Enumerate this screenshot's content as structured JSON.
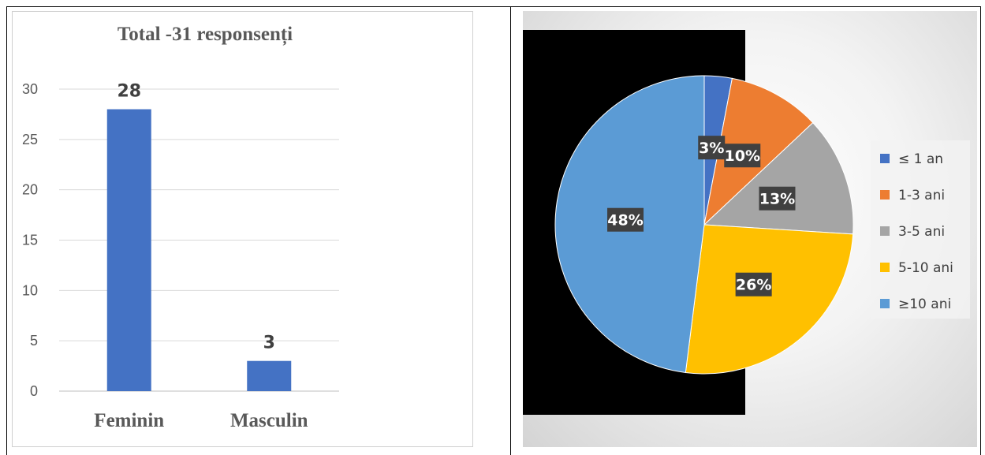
{
  "chart_data": [
    {
      "type": "bar",
      "title": "Total -31 responsenți",
      "categories": [
        "Feminin",
        "Masculin"
      ],
      "values": [
        28,
        3
      ],
      "data_labels": [
        "28",
        "3"
      ],
      "ylim": [
        0,
        30
      ],
      "yticks": [
        0,
        5,
        10,
        15,
        20,
        25,
        30
      ],
      "xlabel": "",
      "ylabel": "",
      "grid": true,
      "colors": {
        "bar": "#4472C4"
      }
    },
    {
      "type": "pie",
      "categories": [
        "≤ 1 an",
        "1-3 ani",
        "3-5 ani",
        "5-10 ani",
        "≥10 ani"
      ],
      "values": [
        3,
        10,
        13,
        26,
        48
      ],
      "data_labels": [
        "3%",
        "10%",
        "13%",
        "26%",
        "48%"
      ],
      "colors": [
        "#4472C4",
        "#ED7D31",
        "#A5A5A5",
        "#FFC000",
        "#5B9BD5"
      ],
      "legend": "right"
    }
  ]
}
